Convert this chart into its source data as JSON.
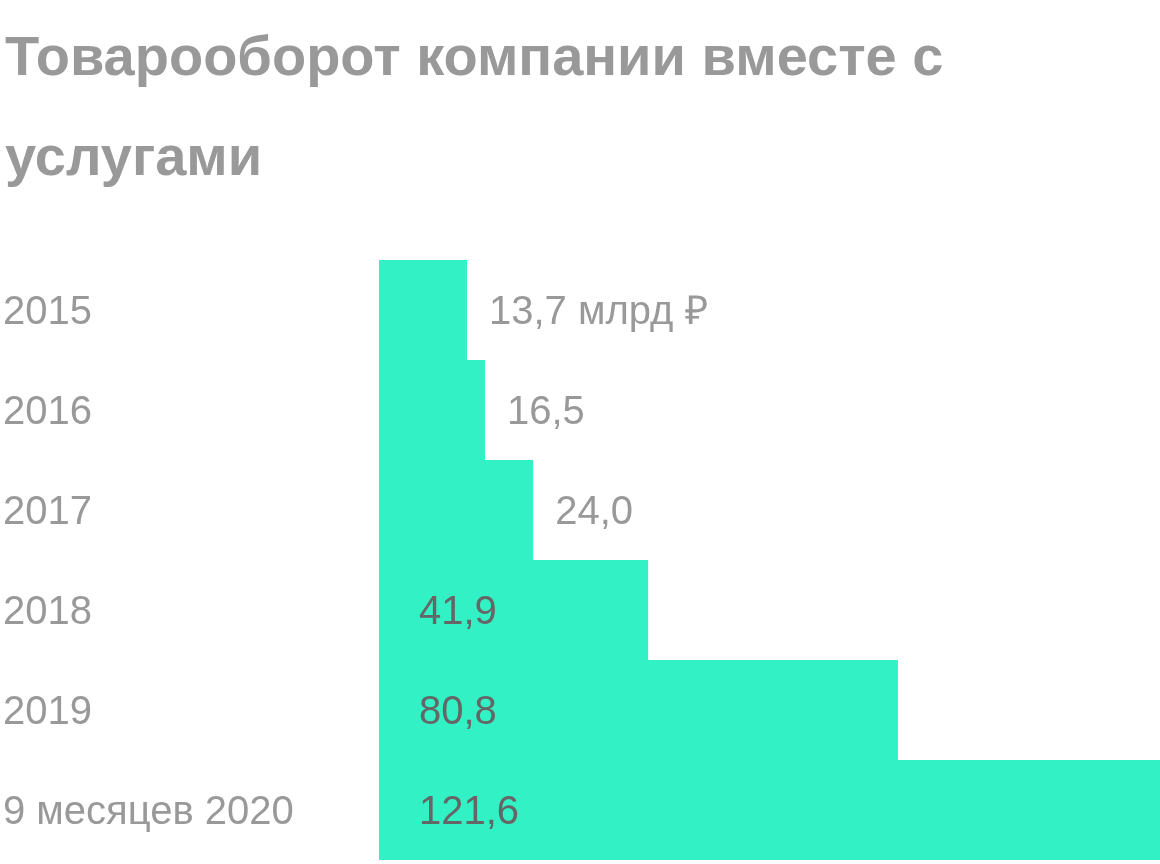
{
  "chart_data": {
    "type": "bar",
    "orientation": "horizontal",
    "title": "Товарооборот компании вместе с услугами",
    "categories": [
      "2015",
      "2016",
      "2017",
      "2018",
      "2019",
      "9 месяцев 2020"
    ],
    "values": [
      13.7,
      16.5,
      24.0,
      41.9,
      80.8,
      121.6
    ],
    "value_labels": [
      "13,7 млрд ₽",
      "16,5",
      "24,0",
      "41,9",
      "80,8",
      "121,6"
    ],
    "color": "#32f2c5"
  }
}
